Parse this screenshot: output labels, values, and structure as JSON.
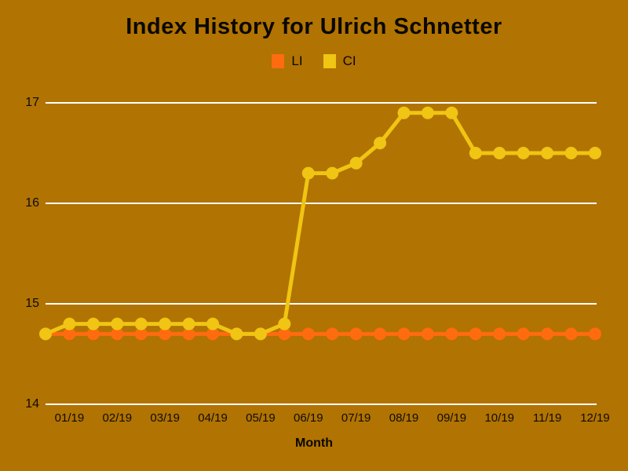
{
  "chart_data": {
    "type": "line",
    "title": "Index History for Ulrich Schnetter",
    "xlabel": "Month",
    "x_tick_labels": [
      "01/19",
      "02/19",
      "03/19",
      "04/19",
      "05/19",
      "06/19",
      "07/19",
      "08/19",
      "09/19",
      "10/19",
      "11/19",
      "12/19"
    ],
    "points_per_month": 2,
    "ylim": [
      14,
      17
    ],
    "yticks": [
      17,
      16,
      15,
      14
    ],
    "grid": "horizontal-white",
    "legend_position": "top-center",
    "background_color": "#B17302",
    "gridline_color": "#FFFFFF",
    "series": [
      {
        "name": "LI",
        "color": "#FF6B0F",
        "values": [
          14.7,
          14.7,
          14.7,
          14.7,
          14.7,
          14.7,
          14.7,
          14.7,
          14.7,
          14.7,
          14.7,
          14.7,
          14.7,
          14.7,
          14.7,
          14.7,
          14.7,
          14.7,
          14.7,
          14.7,
          14.7,
          14.7,
          14.7,
          14.7
        ]
      },
      {
        "name": "CI",
        "color": "#F0C513",
        "values": [
          14.7,
          14.8,
          14.8,
          14.8,
          14.8,
          14.8,
          14.8,
          14.8,
          14.7,
          14.7,
          14.8,
          16.3,
          16.3,
          16.4,
          16.6,
          16.9,
          16.9,
          16.9,
          16.5,
          16.5,
          16.5,
          16.5,
          16.5,
          16.5
        ]
      }
    ]
  }
}
